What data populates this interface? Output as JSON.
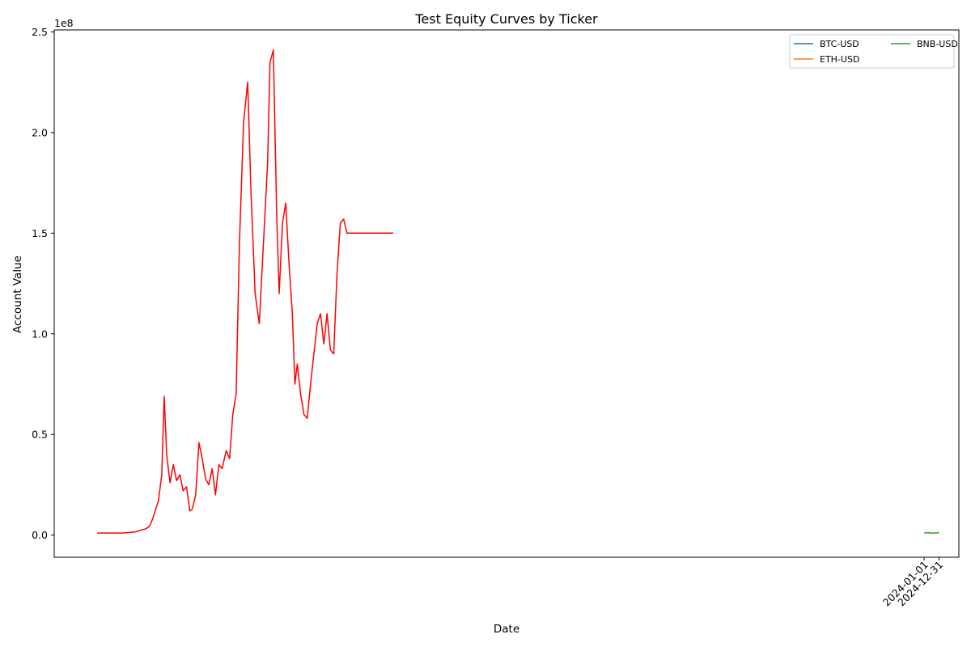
{
  "chart_data": {
    "type": "line",
    "title": "Test Equity Curves by Ticker",
    "xlabel": "Date",
    "ylabel": "Account Value",
    "y_offset_label": "1e8",
    "y_ticks": [
      0.0,
      0.5,
      1.0,
      1.5,
      2.0,
      2.5
    ],
    "y_tick_labels": [
      "0.0",
      "0.5",
      "1.0",
      "1.5",
      "2.0",
      "2.5"
    ],
    "ylim": [
      -0.11,
      2.51
    ],
    "y_unit_multiplier": 100000000,
    "x_tick_labels": [
      "2024-01-01",
      "2024-12-31"
    ],
    "xlim": [
      -5.2,
      104.2
    ],
    "x_ticks": [
      100,
      101.8
    ],
    "grid": false,
    "legend": {
      "placement": "top-right",
      "columns": 2,
      "entries": [
        {
          "name": "BTC-USD",
          "color": "#1f77b4"
        },
        {
          "name": "ETH-USD",
          "color": "#ff7f0e"
        },
        {
          "name": "BNB-USD",
          "color": "#2ca02c"
        }
      ]
    },
    "series": [
      {
        "name": "",
        "color": "#ff0000",
        "x": [
          0,
          1,
          2,
          3,
          4,
          4.5,
          5,
          5.3,
          5.8,
          6.2,
          6.4,
          6.7,
          7,
          7.4,
          7.8,
          8.1,
          8.4,
          8.8,
          9.2,
          9.6,
          10.0,
          10.4,
          10.8,
          11.2,
          11.5,
          11.9,
          12.3,
          12.7,
          13.1,
          13.5,
          13.9,
          14.3,
          14.7,
          15.1,
          15.6,
          16.0,
          16.4,
          16.8,
          17.2,
          17.7,
          18.2,
          18.6,
          19.1,
          19.6,
          20.1,
          20.6,
          20.9,
          21.3,
          21.7,
          22.0,
          22.4,
          22.8,
          23.2,
          23.6,
          23.9,
          24.2,
          24.6,
          25.0,
          25.4,
          25.8,
          26.2,
          26.6,
          27.0,
          27.4,
          27.8,
          28.2,
          28.6,
          29.0,
          29.4,
          29.8,
          30.2,
          30.6,
          31.0,
          31.4,
          31.8,
          32.2,
          32.6,
          33.0,
          33.5,
          34.0,
          34.5,
          35.0,
          35.5,
          35.8
        ],
        "values": [
          0.01,
          0.01,
          0.01,
          0.01,
          0.013,
          0.015,
          0.02,
          0.025,
          0.03,
          0.04,
          0.05,
          0.08,
          0.12,
          0.17,
          0.3,
          0.69,
          0.4,
          0.26,
          0.35,
          0.27,
          0.3,
          0.22,
          0.24,
          0.12,
          0.13,
          0.2,
          0.46,
          0.38,
          0.28,
          0.25,
          0.33,
          0.2,
          0.35,
          0.33,
          0.42,
          0.38,
          0.6,
          0.7,
          1.45,
          2.05,
          2.25,
          1.7,
          1.2,
          1.05,
          1.45,
          1.85,
          2.35,
          2.41,
          1.6,
          1.2,
          1.55,
          1.65,
          1.35,
          1.1,
          0.75,
          0.85,
          0.7,
          0.6,
          0.58,
          0.75,
          0.9,
          1.05,
          1.1,
          0.95,
          1.1,
          0.92,
          0.9,
          1.3,
          1.55,
          1.57,
          1.5,
          1.5,
          1.5,
          1.5,
          1.5,
          1.5,
          1.5,
          1.5,
          1.5,
          1.5,
          1.5,
          1.5,
          1.5,
          1.5
        ]
      },
      {
        "name": "BNB-USD",
        "color": "#2ca02c",
        "x": [
          100,
          100.3,
          100.6,
          100.9,
          101.2,
          101.5,
          101.8
        ],
        "values": [
          0.01,
          0.011,
          0.012,
          0.009,
          0.011,
          0.01,
          0.013
        ]
      }
    ]
  }
}
